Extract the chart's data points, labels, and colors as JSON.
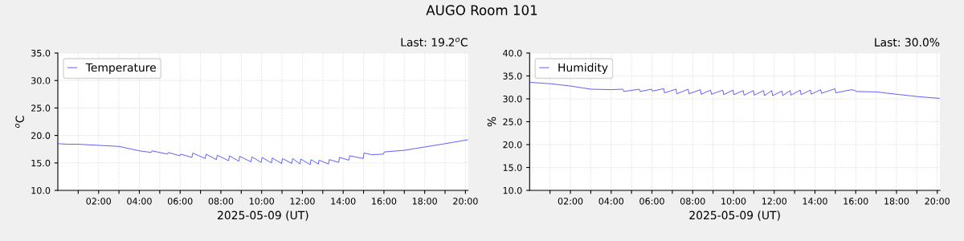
{
  "chart_data": [
    {
      "type": "line",
      "title": "AUGO Room 101",
      "subtitle": "Last: 19.2$^{o}$C",
      "xlabel": "2025-05-09 (UT)",
      "ylabel": "$^{o}$C",
      "legend": "top left",
      "grid": true,
      "xlim": [
        0,
        20.13
      ],
      "ylim": [
        10,
        35
      ],
      "xticks": [
        {
          "value": 1,
          "label": null
        },
        {
          "value": 2,
          "label": "02:00"
        },
        {
          "value": 3,
          "label": null
        },
        {
          "value": 4,
          "label": "04:00"
        },
        {
          "value": 5,
          "label": null
        },
        {
          "value": 6,
          "label": "06:00"
        },
        {
          "value": 7,
          "label": null
        },
        {
          "value": 8,
          "label": "08:00"
        },
        {
          "value": 9,
          "label": null
        },
        {
          "value": 10,
          "label": "10:00"
        },
        {
          "value": 11,
          "label": null
        },
        {
          "value": 12,
          "label": "12:00"
        },
        {
          "value": 13,
          "label": null
        },
        {
          "value": 14,
          "label": "14:00"
        },
        {
          "value": 15,
          "label": null
        },
        {
          "value": 16,
          "label": "16:00"
        },
        {
          "value": 17,
          "label": null
        },
        {
          "value": 18,
          "label": "18:00"
        },
        {
          "value": 19,
          "label": null
        },
        {
          "value": 20,
          "label": "20:00"
        }
      ],
      "yticks": [
        {
          "value": 10,
          "label": "10.0"
        },
        {
          "value": 15,
          "label": "15.0"
        },
        {
          "value": 20,
          "label": "20.0"
        },
        {
          "value": 25,
          "label": "25.0"
        },
        {
          "value": 30,
          "label": "30.0"
        },
        {
          "value": 35,
          "label": "35.0"
        }
      ],
      "series": [
        {
          "name": "Temperature",
          "color": "#4040ff",
          "x": [
            0,
            0.5,
            1,
            2,
            3,
            3.5,
            4,
            4.58,
            4.62,
            5.38,
            5.42,
            5.98,
            6.02,
            6.58,
            6.62,
            7.23,
            7.27,
            7.78,
            7.82,
            8.38,
            8.42,
            8.88,
            8.92,
            9.48,
            9.52,
            9.98,
            10.02,
            10.48,
            10.52,
            10.98,
            11.02,
            11.48,
            11.52,
            11.88,
            11.92,
            12.38,
            12.42,
            12.78,
            12.82,
            13.28,
            13.32,
            13.78,
            13.82,
            14.28,
            14.32,
            14.98,
            15.02,
            15.4,
            15.98,
            16.02,
            17,
            18,
            19,
            20.1
          ],
          "values": [
            18.5,
            18.4,
            18.4,
            18.2,
            18.0,
            17.6,
            17.2,
            16.9,
            17.2,
            16.6,
            16.9,
            16.3,
            16.6,
            16.0,
            16.8,
            15.8,
            16.6,
            15.6,
            16.4,
            15.4,
            16.3,
            15.3,
            16.2,
            15.2,
            16.1,
            15.1,
            16.0,
            15.0,
            15.9,
            14.9,
            15.8,
            14.9,
            15.8,
            14.8,
            15.7,
            14.7,
            15.6,
            14.8,
            15.5,
            14.8,
            15.6,
            15.1,
            16.0,
            15.5,
            16.3,
            15.8,
            16.8,
            16.5,
            16.6,
            17.0,
            17.3,
            17.9,
            18.5,
            19.2
          ]
        }
      ]
    },
    {
      "type": "line",
      "subtitle": "Last: 30.0%",
      "xlabel": "2025-05-09 (UT)",
      "ylabel": "%",
      "legend": "top left",
      "grid": true,
      "xlim": [
        0,
        20.13
      ],
      "ylim": [
        10,
        40
      ],
      "xticks": [
        {
          "value": 1,
          "label": null
        },
        {
          "value": 2,
          "label": "02:00"
        },
        {
          "value": 3,
          "label": null
        },
        {
          "value": 4,
          "label": "04:00"
        },
        {
          "value": 5,
          "label": null
        },
        {
          "value": 6,
          "label": "06:00"
        },
        {
          "value": 7,
          "label": null
        },
        {
          "value": 8,
          "label": "08:00"
        },
        {
          "value": 9,
          "label": null
        },
        {
          "value": 10,
          "label": "10:00"
        },
        {
          "value": 11,
          "label": null
        },
        {
          "value": 12,
          "label": "12:00"
        },
        {
          "value": 13,
          "label": null
        },
        {
          "value": 14,
          "label": "14:00"
        },
        {
          "value": 15,
          "label": null
        },
        {
          "value": 16,
          "label": "16:00"
        },
        {
          "value": 17,
          "label": null
        },
        {
          "value": 18,
          "label": "18:00"
        },
        {
          "value": 19,
          "label": null
        },
        {
          "value": 20,
          "label": "20:00"
        }
      ],
      "yticks": [
        {
          "value": 10,
          "label": "10.0"
        },
        {
          "value": 15,
          "label": "15.0"
        },
        {
          "value": 20,
          "label": "20.0"
        },
        {
          "value": 25,
          "label": "25.0"
        },
        {
          "value": 30,
          "label": "30.0"
        },
        {
          "value": 35,
          "label": "35.0"
        },
        {
          "value": 40,
          "label": "40.0"
        }
      ],
      "series": [
        {
          "name": "Humidity",
          "color": "#4040ff",
          "x": [
            0,
            1,
            2,
            3,
            4,
            4.58,
            4.62,
            5.38,
            5.42,
            5.98,
            6.02,
            6.58,
            6.62,
            7.18,
            7.22,
            7.78,
            7.82,
            8.38,
            8.42,
            8.88,
            8.92,
            9.48,
            9.52,
            9.98,
            10.02,
            10.48,
            10.52,
            10.98,
            11.02,
            11.48,
            11.52,
            11.88,
            11.92,
            12.38,
            12.42,
            12.78,
            12.82,
            13.28,
            13.32,
            13.78,
            13.82,
            14.28,
            14.32,
            14.98,
            15.02,
            15.8,
            15.98,
            16.02,
            17,
            18,
            19,
            20.1
          ],
          "values": [
            33.6,
            33.3,
            32.8,
            32.1,
            32.0,
            32.1,
            31.6,
            32.1,
            31.6,
            32.1,
            31.7,
            32.2,
            31.3,
            32.1,
            31.1,
            32.1,
            31.1,
            32.0,
            31.0,
            31.9,
            31.0,
            31.9,
            30.9,
            31.9,
            30.9,
            31.8,
            30.8,
            31.8,
            30.8,
            31.8,
            30.7,
            31.8,
            30.7,
            31.7,
            30.7,
            31.8,
            30.8,
            31.9,
            30.9,
            31.9,
            31.0,
            32.0,
            31.2,
            32.2,
            31.3,
            32.0,
            31.8,
            31.6,
            31.5,
            31.0,
            30.5,
            30.1
          ]
        }
      ]
    }
  ]
}
